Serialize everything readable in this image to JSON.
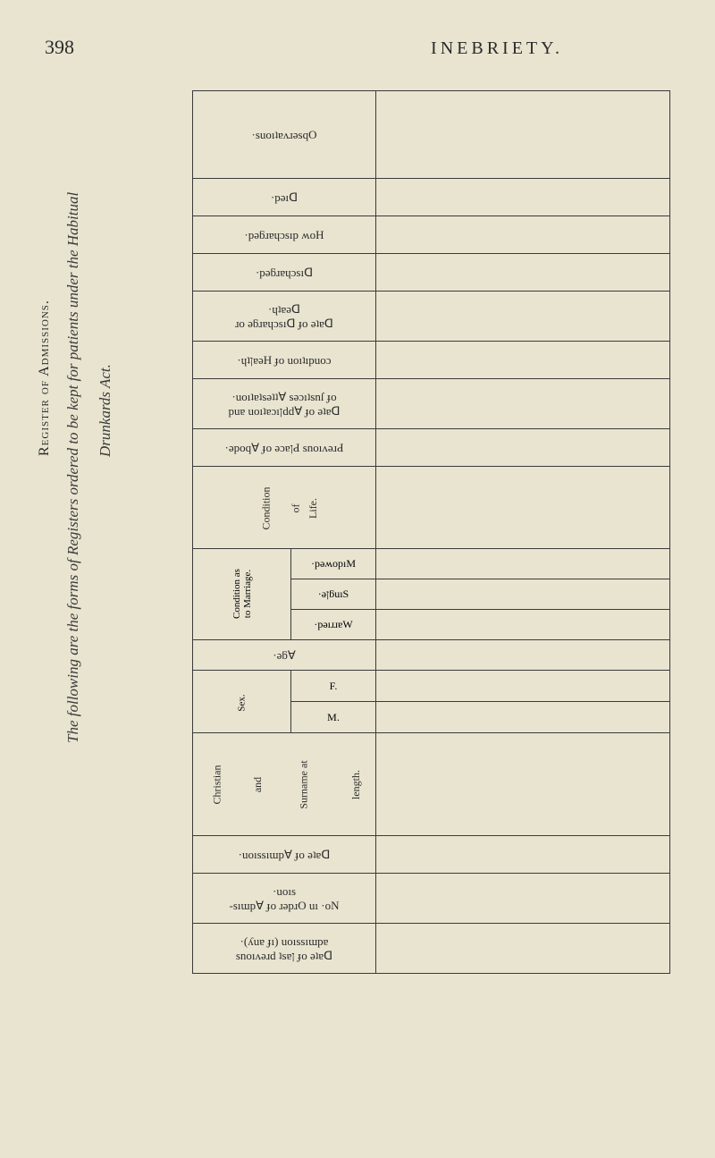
{
  "page_number": "398",
  "page_title": "INEBRIETY.",
  "sidebar": {
    "register_label": "Register of Admissions.",
    "following_label": "The following are the forms of Registers ordered to be kept for patients under the Habitual",
    "drunkards_label": "Drunkards Act."
  },
  "rows": {
    "observations": "·suoıʇɐʌɹǝsqO",
    "died": "·pǝıᗡ",
    "how_discharged": "·pǝƃɹɐɥɔsıp ʍoH",
    "discharged": "·pǝƃɹɐɥɔsıᗡ",
    "date_discharge_death": "·ɥʇɐǝᗡ\nɹo ǝƃɹɐɥɔsıᗡ ɟo ǝʇɐᗡ",
    "condition_health": "·ɥʇןɐǝH ɟo uoıʇıpuoɔ",
    "date_application": "·uoıʇɐʇsǝʇʇⱯ sǝɔıʇsnſ ɟo\npuɐ uoıʇɐɔıןddⱯ ɟo ǝʇɐᗡ",
    "previous_abode": "·ǝpoqⱯ ɟo ǝɔɐןԀ snoıʌǝɹԀ",
    "condition_of_life": {
      "condition": "Condition",
      "of": "of",
      "life": "Life."
    },
    "condition_marriage": {
      "label": "Condition as\nto Marriage.",
      "widowed": "·pǝʍopıM",
      "single": "·ǝןƃuıS",
      "married": "·pǝıɹɹɐW"
    },
    "age": "·ǝƃⱯ",
    "sex": {
      "label": "Sex.",
      "f": "F.",
      "m": "M."
    },
    "christian": {
      "christian": "Christian",
      "and": "and",
      "surname": "Surname at",
      "length": "length."
    },
    "date_admission": "·uoıssıɯpⱯ ɟo ǝʇɐᗡ",
    "no_order": "·uoıs\n-sıɯpⱯ ɟo ɹǝpɹO uı ·oN",
    "date_previous": "·(ʎuɐ ɟı) uoıssıɯpɐ\nsnoıʌǝɹd ʇsɐן ɟo ǝʇɐᗡ"
  }
}
